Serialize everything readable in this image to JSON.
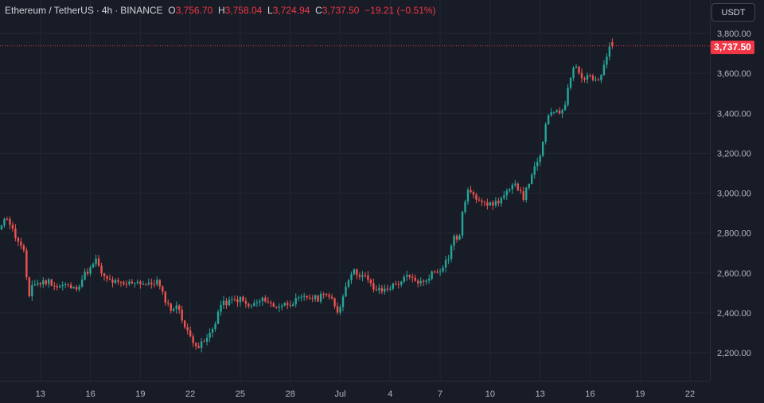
{
  "legend": {
    "symbol": "Ethereum / TetherUS",
    "interval": "4h",
    "exchange": "BINANCE",
    "o_label": "O",
    "o_value": "3,756.70",
    "h_label": "H",
    "h_value": "3,758.04",
    "l_label": "L",
    "l_value": "3,724.94",
    "c_label": "C",
    "c_value": "3,737.50",
    "change": "−19.21 (−0.51%)"
  },
  "unit_button": "USDT",
  "last_price_label": "3,737.50",
  "colors": {
    "background": "#181c26",
    "up": "#26a69a",
    "down": "#ef5350",
    "grid": "#232734",
    "last_price_line": "#f23645"
  },
  "chart_data": {
    "type": "candlestick",
    "title": "Ethereum / TetherUS · 4h · BINANCE",
    "y_ticks": [
      "3,800.00",
      "3,600.00",
      "3,400.00",
      "3,200.00",
      "3,000.00",
      "2,800.00",
      "2,600.00",
      "2,400.00",
      "2,200.00"
    ],
    "ylim": [
      2130,
      3840
    ],
    "x_ticks": [
      "13",
      "16",
      "19",
      "22",
      "25",
      "28",
      "Jul",
      "4",
      "7",
      "10",
      "13",
      "16",
      "19",
      "22"
    ],
    "last_price": 3737.5,
    "grid": true,
    "close_path": [
      [
        10.0,
        2760
      ],
      [
        10.5,
        2830
      ],
      [
        11.0,
        2880
      ],
      [
        11.5,
        2780
      ],
      [
        12.0,
        2700
      ],
      [
        12.3,
        2480
      ],
      [
        12.5,
        2540
      ],
      [
        13.0,
        2550
      ],
      [
        13.5,
        2560
      ],
      [
        14.0,
        2530
      ],
      [
        14.5,
        2540
      ],
      [
        15.0,
        2520
      ],
      [
        15.3,
        2540
      ],
      [
        15.7,
        2600
      ],
      [
        16.0,
        2620
      ],
      [
        16.4,
        2670
      ],
      [
        16.7,
        2580
      ],
      [
        17.2,
        2560
      ],
      [
        18.0,
        2540
      ],
      [
        18.7,
        2560
      ],
      [
        19.5,
        2540
      ],
      [
        20.0,
        2560
      ],
      [
        20.4,
        2480
      ],
      [
        20.8,
        2420
      ],
      [
        21.3,
        2430
      ],
      [
        21.7,
        2320
      ],
      [
        22.0,
        2280
      ],
      [
        22.5,
        2230
      ],
      [
        23.0,
        2270
      ],
      [
        23.4,
        2330
      ],
      [
        23.8,
        2440
      ],
      [
        24.5,
        2460
      ],
      [
        25.0,
        2470
      ],
      [
        25.5,
        2430
      ],
      [
        26.0,
        2450
      ],
      [
        26.5,
        2470
      ],
      [
        27.0,
        2430
      ],
      [
        28.0,
        2450
      ],
      [
        29.0,
        2480
      ],
      [
        29.7,
        2470
      ],
      [
        30.0,
        2510
      ],
      [
        30.5,
        2460
      ],
      [
        30.8,
        2400
      ],
      [
        31.1,
        2460
      ],
      [
        31.4,
        2560
      ],
      [
        31.7,
        2610
      ],
      [
        32.0,
        2600
      ],
      [
        32.5,
        2580
      ],
      [
        33.0,
        2520
      ],
      [
        33.5,
        2510
      ],
      [
        34.0,
        2530
      ],
      [
        34.5,
        2550
      ],
      [
        35.0,
        2580
      ],
      [
        35.5,
        2560
      ],
      [
        36.0,
        2550
      ],
      [
        36.5,
        2600
      ],
      [
        37.0,
        2620
      ],
      [
        37.5,
        2680
      ],
      [
        37.8,
        2780
      ],
      [
        38.0,
        2770
      ],
      [
        38.2,
        2800
      ],
      [
        38.4,
        2940
      ],
      [
        38.7,
        3020
      ],
      [
        39.0,
        2980
      ],
      [
        39.5,
        2970
      ],
      [
        40.0,
        2940
      ],
      [
        40.5,
        2960
      ],
      [
        41.0,
        3000
      ],
      [
        41.5,
        3040
      ],
      [
        41.8,
        3020
      ],
      [
        42.0,
        2980
      ],
      [
        42.2,
        3020
      ],
      [
        42.5,
        3100
      ],
      [
        42.8,
        3140
      ],
      [
        43.0,
        3180
      ],
      [
        43.3,
        3330
      ],
      [
        43.6,
        3400
      ],
      [
        44.0,
        3420
      ],
      [
        44.4,
        3400
      ],
      [
        44.7,
        3550
      ],
      [
        45.0,
        3640
      ],
      [
        45.3,
        3620
      ],
      [
        45.6,
        3560
      ],
      [
        45.9,
        3600
      ],
      [
        46.2,
        3570
      ],
      [
        46.5,
        3560
      ],
      [
        46.8,
        3620
      ],
      [
        47.0,
        3680
      ],
      [
        47.2,
        3750
      ],
      [
        47.35,
        3737.5
      ]
    ]
  }
}
